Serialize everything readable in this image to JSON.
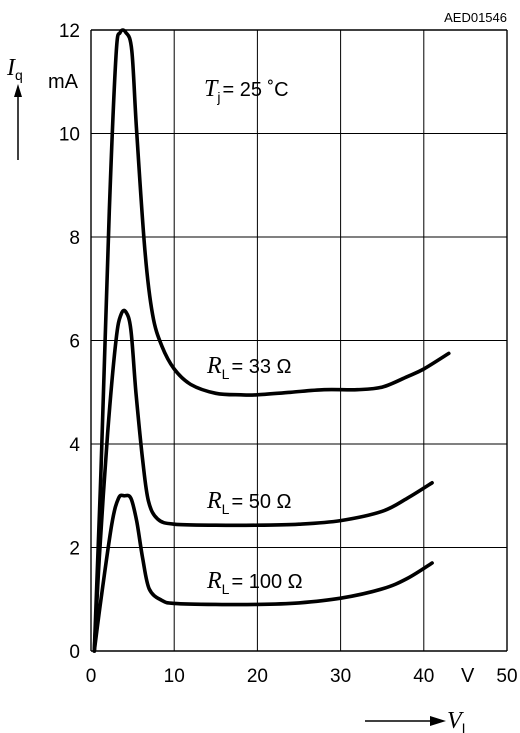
{
  "chart_data": {
    "type": "line",
    "code": "AED01546",
    "y_unit": "mA",
    "x_unit": "V",
    "y_symbol": "I",
    "y_subscript": "q",
    "x_symbol": "V",
    "x_subscript": "I",
    "x_ticks": [
      "0",
      "10",
      "20",
      "30",
      "40",
      "50"
    ],
    "y_ticks": [
      "0",
      "2",
      "4",
      "6",
      "8",
      "10",
      "12"
    ],
    "xlim": [
      0,
      50
    ],
    "ylim": [
      0,
      12
    ],
    "grid": true,
    "condition": {
      "symbol": "T",
      "subscript": "j",
      "text": "= 25 ˚C"
    },
    "series": [
      {
        "name": "33 Ω",
        "label_symbol": "R",
        "label_subscript": "L",
        "label_text": "= 33 Ω",
        "x": [
          0.4,
          1.2,
          2.2,
          3.0,
          3.5,
          4.2,
          4.9,
          5.5,
          6.5,
          7.4,
          8.5,
          10,
          12,
          15,
          18,
          20,
          24,
          28,
          32,
          35,
          38,
          40,
          43
        ],
        "y": [
          0,
          3.5,
          8.5,
          11.5,
          11.95,
          11.95,
          11.6,
          10.0,
          7.7,
          6.5,
          5.9,
          5.45,
          5.15,
          4.98,
          4.95,
          4.95,
          5.0,
          5.05,
          5.05,
          5.1,
          5.3,
          5.45,
          5.75
        ]
      },
      {
        "name": "50 Ω",
        "label_symbol": "R",
        "label_subscript": "L",
        "label_text": "= 50 Ω",
        "x": [
          0.4,
          1.0,
          2.0,
          3.0,
          3.6,
          4.2,
          4.8,
          5.4,
          6.2,
          6.9,
          8,
          10,
          15,
          20,
          25,
          30,
          35,
          38,
          41
        ],
        "y": [
          0,
          1.8,
          4.2,
          6.0,
          6.5,
          6.55,
          6.2,
          5.0,
          3.7,
          2.9,
          2.55,
          2.45,
          2.43,
          2.43,
          2.45,
          2.52,
          2.7,
          2.95,
          3.25
        ]
      },
      {
        "name": "100 Ω",
        "label_symbol": "R",
        "label_subscript": "L",
        "label_text": "= 100 Ω",
        "x": [
          0.4,
          1.2,
          2.5,
          3.3,
          4.0,
          4.8,
          5.5,
          6.2,
          7.0,
          8.5,
          10,
          15,
          20,
          25,
          30,
          35,
          38,
          41
        ],
        "y": [
          0,
          1.0,
          2.45,
          2.95,
          3.0,
          2.95,
          2.5,
          1.8,
          1.2,
          0.98,
          0.92,
          0.9,
          0.9,
          0.93,
          1.02,
          1.2,
          1.4,
          1.7
        ]
      }
    ]
  }
}
